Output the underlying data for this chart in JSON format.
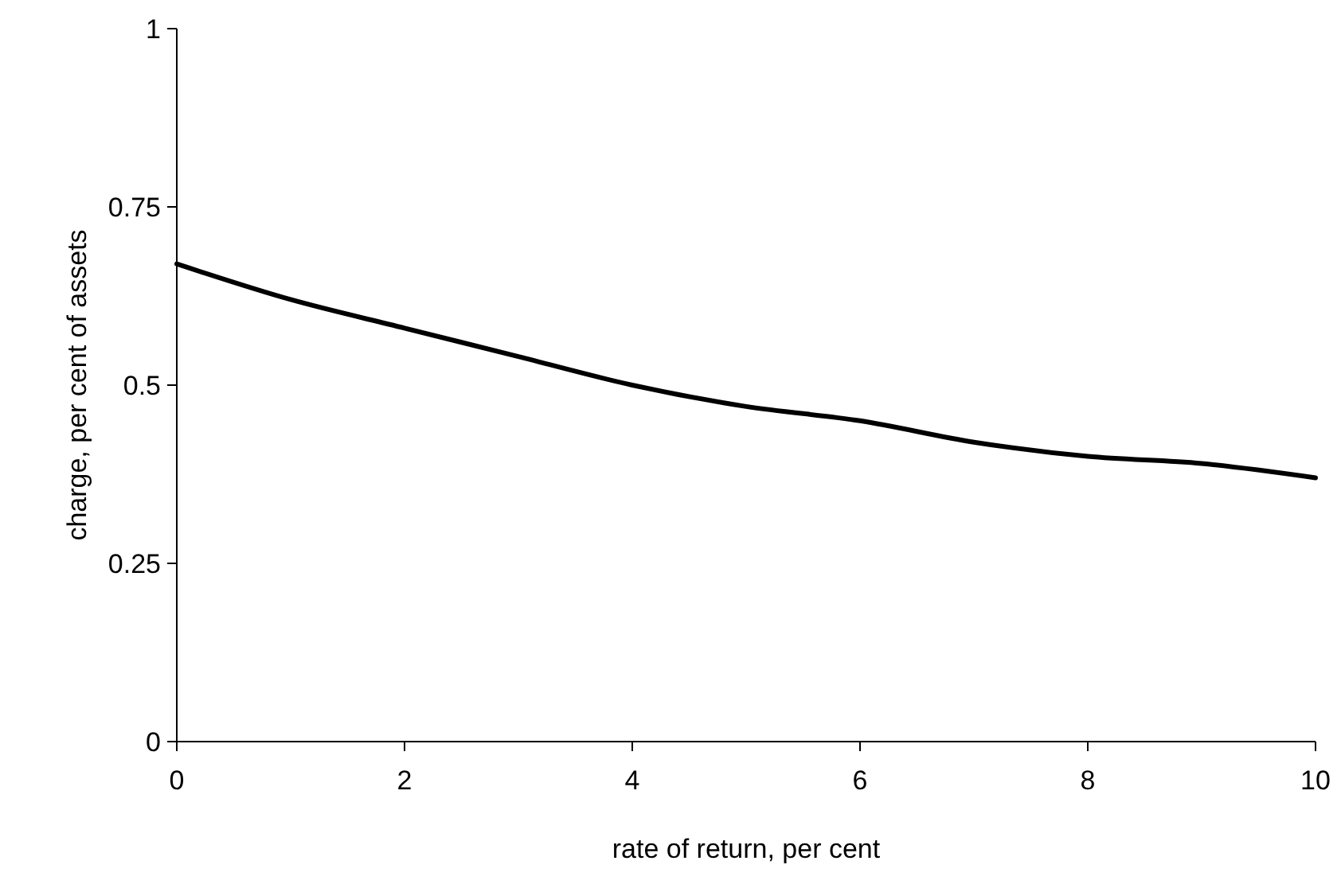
{
  "chart_data": {
    "type": "line",
    "xlabel": "rate of return, per cent",
    "ylabel": "charge, per cent of assets",
    "x": [
      0,
      1,
      2,
      3,
      4,
      5,
      6,
      7,
      8,
      9,
      10
    ],
    "series": [
      {
        "color": "#000000",
        "values": [
          0.67,
          0.62,
          0.58,
          0.54,
          0.5,
          0.47,
          0.45,
          0.42,
          0.4,
          0.39,
          0.37
        ]
      }
    ],
    "xlim": [
      0,
      10
    ],
    "xticks": [
      0,
      2,
      4,
      6,
      8,
      10
    ],
    "ylim": [
      0,
      1
    ],
    "yticks": [
      0,
      0.25,
      0.5,
      0.75,
      1
    ],
    "grid": false,
    "marker": "none",
    "line_style": "solid"
  }
}
